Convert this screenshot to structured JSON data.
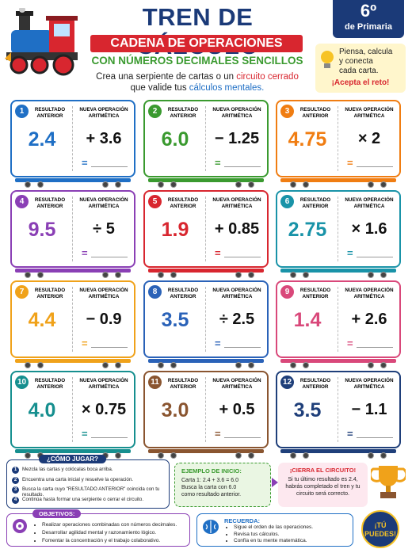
{
  "header": {
    "title": "TREN DE CÁLCULO",
    "banner": "CADENA DE OPERACIONES",
    "subtitle": "CON NÚMEROS DECIMALES SENCILLOS",
    "intro": [
      [
        "Crea una serpiente de cartas o un",
        "circuito cerrado"
      ],
      [
        "que valide tus",
        "cálculos mentales."
      ]
    ],
    "grade": "6º",
    "grade_label": "de Primaria",
    "tip": [
      "Piensa, calcula",
      "y conecta",
      "cada carta."
    ],
    "tip_cta": "¡Acepta el reto!"
  },
  "card_labels": {
    "previous": "RESULTADO ANTERIOR",
    "operation": "NUEVA OPERACIÓN ARITMÉTICA",
    "equals": "="
  },
  "cards": [
    {
      "number": "1",
      "result": "2.4",
      "operation": "+ 3.6",
      "color": "#1f6fc5"
    },
    {
      "number": "2",
      "result": "6.0",
      "operation": "− 1.25",
      "color": "#3a9a2f"
    },
    {
      "number": "3",
      "result": "4.75",
      "operation": "× 2",
      "color": "#f07d12"
    },
    {
      "number": "4",
      "result": "9.5",
      "operation": "÷ 5",
      "color": "#8a3fb5"
    },
    {
      "number": "5",
      "result": "1.9",
      "operation": "+ 0.85",
      "color": "#d8262f"
    },
    {
      "number": "6",
      "result": "2.75",
      "operation": "× 1.6",
      "color": "#1993a8"
    },
    {
      "number": "7",
      "result": "4.4",
      "operation": "− 0.9",
      "color": "#f0a21a"
    },
    {
      "number": "8",
      "result": "3.5",
      "operation": "÷ 2.5",
      "color": "#2a62b8"
    },
    {
      "number": "9",
      "result": "1.4",
      "operation": "+ 2.6",
      "color": "#d9487a"
    },
    {
      "number": "10",
      "result": "4.0",
      "operation": "× 0.75",
      "color": "#168f8f"
    },
    {
      "number": "11",
      "result": "3.0",
      "operation": "+ 0.5",
      "color": "#8a5530"
    },
    {
      "number": "12",
      "result": "3.5",
      "operation": "− 1.1",
      "color": "#1f3f7a"
    }
  ],
  "how_to_play": {
    "title": "¿CÓMO JUGAR?",
    "steps": [
      {
        "number": "1",
        "text": "Mezcla las cartas y colócalas boca arriba."
      },
      {
        "number": "2",
        "text": "Encuentra una carta inicial y resuelve la operación."
      },
      {
        "number": "3",
        "text": "Busca la carta cuyo \"RESULTADO ANTERIOR\" coincida con tu resultado."
      },
      {
        "number": "4",
        "text": "Continúa hasta formar una serpiente o cerrar el circuito."
      }
    ]
  },
  "example": {
    "title": "EJEMPLO DE INICIO:",
    "lines": [
      "Carta 1:  2.4 + 3.6 = 6.0",
      "Busca la carta con 6.0",
      "como resultado anterior."
    ]
  },
  "circuit": {
    "title": "¡CIERRA EL CIRCUITO!",
    "text": "Si tu último resultado es 2.4, habrás completado el tren y tu circuito será correcto."
  },
  "objectives": {
    "title": "OBJETIVOS:",
    "items": [
      "Realizar operaciones combinadas con números decimales.",
      "Desarrollar agilidad mental y razonamiento lógico.",
      "Fomentar la concentración y el trabajo colaborativo."
    ]
  },
  "remember": {
    "title": "RECUERDA:",
    "items": [
      "Sigue el orden de las operaciones.",
      "Revisa tus cálculos.",
      "Confía en tu mente matemática."
    ]
  },
  "badge": [
    "¡TÚ",
    "PUEDES!"
  ]
}
